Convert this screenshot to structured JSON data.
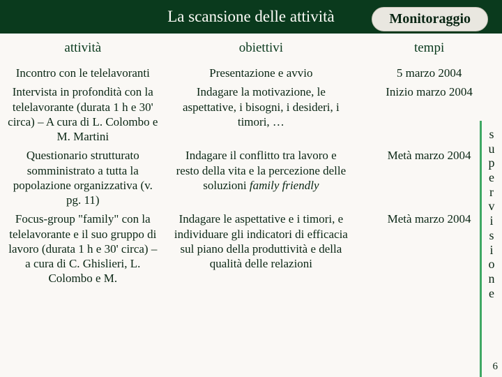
{
  "title": "La scansione delle attività",
  "badge": "Monitoraggio",
  "headers": {
    "c1": "attività",
    "c2": "obiettivi",
    "c3": "tempi"
  },
  "rows": [
    {
      "a": "Incontro con le telelavoranti",
      "o": "Presentazione e avvio",
      "t": "5 marzo 2004"
    },
    {
      "a": "Intervista in profondità con la telelavorante (durata 1 h e 30' circa) – A cura di L. Colombo e M. Martini",
      "o": "Indagare la motivazione, le aspettative, i bisogni, i desideri, i timori, …",
      "t": "Inizio marzo 2004"
    },
    {
      "a": "Questionario strutturato somministrato a tutta la popolazione organizzativa (v. pg. 11)",
      "o_html": "Indagare il conflitto tra lavoro e resto della vita e la percezione delle soluzioni <span class=\"italic\">family friendly</span>",
      "t": "Metà marzo 2004"
    },
    {
      "a": "Focus-group \"family\" con la telelavorante e il suo gruppo di lavoro (durata 1 h e 30' circa) – a cura di C. Ghislieri, L. Colombo e M.",
      "o": "Indagare le aspettative e i timori, e individuare gli indicatori di efficacia sul piano della produttività e della qualità delle relazioni",
      "t": "Metà marzo 2004"
    }
  ],
  "sidebar_word": "supervisione",
  "page_number": "6",
  "colors": {
    "header_bg": "#0a3a1d",
    "header_text": "#fdfcf8",
    "body_bg": "#faf8f5",
    "text": "#0a2614",
    "bar": "#3fa864",
    "badge_bg": "#e9e7e0"
  }
}
